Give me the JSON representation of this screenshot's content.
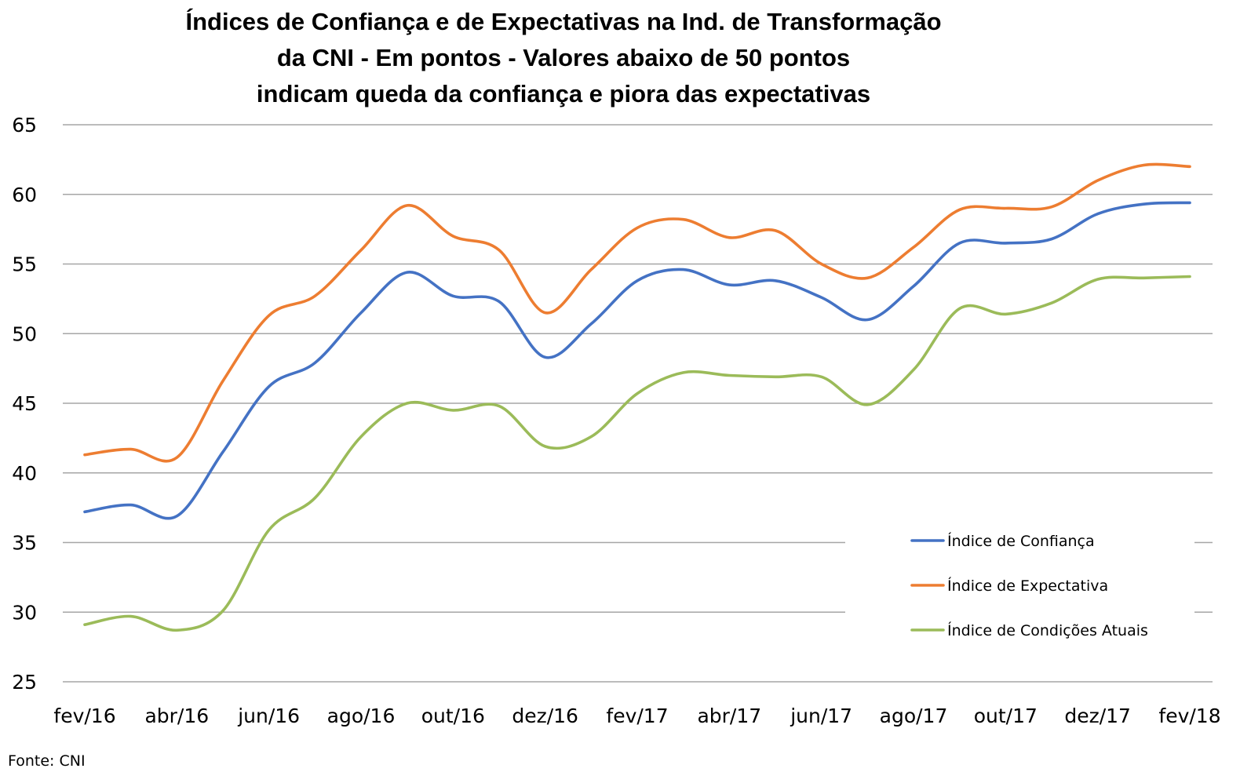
{
  "chart_data": {
    "type": "line",
    "title_lines": [
      "Índices de Confiança e de Expectativas na Ind. de Transformação",
      "da CNI - Em pontos - Valores abaixo de 50 pontos",
      "indicam queda da confiança e piora das expectativas"
    ],
    "x": [
      "fev/16",
      "mar/16",
      "abr/16",
      "mai/16",
      "jun/16",
      "jul/16",
      "ago/16",
      "set/16",
      "out/16",
      "nov/16",
      "dez/16",
      "jan/17",
      "fev/17",
      "mar/17",
      "abr/17",
      "mai/17",
      "jun/17",
      "jul/17",
      "ago/17",
      "set/17",
      "out/17",
      "nov/17",
      "dez/17",
      "jan/18",
      "fev/18"
    ],
    "x_tick_labels": [
      "fev/16",
      "abr/16",
      "jun/16",
      "ago/16",
      "out/16",
      "dez/16",
      "fev/17",
      "abr/17",
      "jun/17",
      "ago/17",
      "out/17",
      "dez/17",
      "fev/18"
    ],
    "y_ticks": [
      "25",
      "30",
      "35",
      "40",
      "45",
      "50",
      "55",
      "60",
      "65"
    ],
    "ylim": [
      25,
      65
    ],
    "grid": true,
    "legend_position": "lower-right",
    "series": [
      {
        "name": "Índice de Confiança",
        "color": "#4472C4",
        "values": [
          37.2,
          37.7,
          36.9,
          41.5,
          46.2,
          47.9,
          51.5,
          54.4,
          52.7,
          52.3,
          48.3,
          50.7,
          53.8,
          54.6,
          53.5,
          53.8,
          52.6,
          51.0,
          53.4,
          56.5,
          56.5,
          56.8,
          58.6,
          59.3,
          59.4
        ]
      },
      {
        "name": "Índice de Expectativa",
        "color": "#ED7D31",
        "values": [
          41.3,
          41.7,
          41.1,
          46.6,
          51.3,
          52.7,
          56.0,
          59.2,
          57.0,
          56.0,
          51.5,
          54.6,
          57.6,
          58.2,
          56.9,
          57.4,
          55.0,
          54.0,
          56.2,
          58.9,
          59.0,
          59.1,
          61.0,
          62.1,
          62.0
        ]
      },
      {
        "name": "Índice de Condições Atuais",
        "color": "#9BBB59",
        "values": [
          29.1,
          29.7,
          28.7,
          30.1,
          35.9,
          38.2,
          42.6,
          45.0,
          44.5,
          44.8,
          41.9,
          42.6,
          45.7,
          47.2,
          47.0,
          46.9,
          46.9,
          44.9,
          47.4,
          51.8,
          51.4,
          52.2,
          53.9,
          54.0,
          54.1
        ]
      }
    ],
    "source": "Fonte: CNI"
  }
}
